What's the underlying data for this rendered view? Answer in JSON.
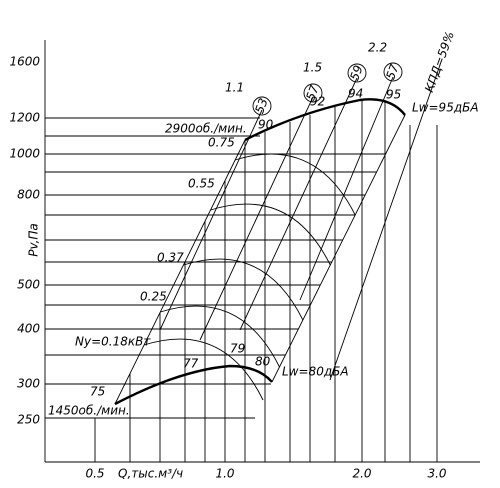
{
  "axis": {
    "y_label": "Pv,Па",
    "x_label": "Q,тыс.м³/ч",
    "y_ticks": [
      "1600",
      "1200",
      "1000",
      "800",
      "500",
      "400",
      "300",
      "250"
    ],
    "x_ticks": [
      "0.5",
      "1.0",
      "2.0",
      "3.0"
    ]
  },
  "speeds": [
    "2900об./мин.",
    "1450об./мин."
  ],
  "power": [
    "Ny=0.18кВт",
    "0.25",
    "0.37",
    "0.55",
    "0.75",
    "1.1",
    "1.5",
    "2.2"
  ],
  "efficiency": [
    "53",
    "57",
    "59",
    "57",
    "КПД=59%"
  ],
  "noise_upper": [
    "90",
    "92",
    "94",
    "95",
    "Lw=95дБА"
  ],
  "noise_lower": [
    "75",
    "77",
    "79",
    "80",
    "Lw=80дБА"
  ]
}
